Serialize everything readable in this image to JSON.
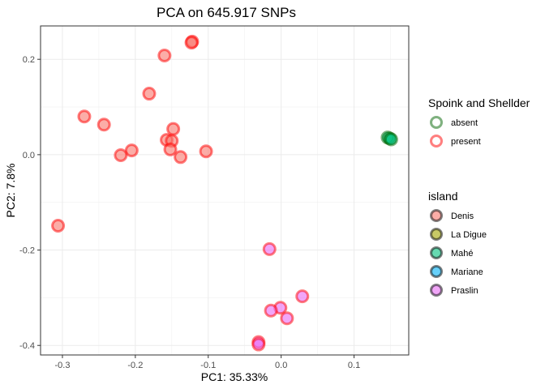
{
  "chart_data": {
    "type": "scatter",
    "title": "PCA on 645.917 SNPs",
    "xlabel": "PC1: 35.33%",
    "ylabel": "PC2: 7.8%",
    "xlim": [
      -0.33,
      0.175
    ],
    "ylim": [
      -0.42,
      0.27
    ],
    "x_ticks": [
      -0.3,
      -0.2,
      -0.1,
      0.0,
      0.1
    ],
    "x_tick_labels": [
      "-0.3",
      "-0.2",
      "-0.1",
      "0.0",
      "0.1"
    ],
    "y_ticks": [
      -0.4,
      -0.2,
      0.0,
      0.2
    ],
    "y_tick_labels": [
      "-0.4",
      "-0.2",
      "0.0",
      "0.2"
    ],
    "grid": true,
    "legend_placement": "right",
    "legends": [
      {
        "title": "Spoink and Shellder",
        "aesthetic": "outline color",
        "entries": [
          {
            "label": "absent",
            "color": "#006400"
          },
          {
            "label": "present",
            "color": "#ff0000"
          }
        ]
      },
      {
        "title": "island",
        "aesthetic": "fill color",
        "entries": [
          {
            "label": "Denis",
            "color": "#f8766d"
          },
          {
            "label": "La Digue",
            "color": "#a3a500"
          },
          {
            "label": "Mahé",
            "color": "#00bf7d"
          },
          {
            "label": "Mariane",
            "color": "#00b0f6"
          },
          {
            "label": "Praslin",
            "color": "#e76bf3"
          }
        ]
      }
    ],
    "points": [
      {
        "x": -0.122,
        "y": 0.237,
        "spoink": "present",
        "island": "Denis"
      },
      {
        "x": -0.123,
        "y": 0.235,
        "spoink": "present",
        "island": "Denis"
      },
      {
        "x": -0.16,
        "y": 0.208,
        "spoink": "present",
        "island": "Denis"
      },
      {
        "x": -0.181,
        "y": 0.128,
        "spoink": "present",
        "island": "Denis"
      },
      {
        "x": -0.27,
        "y": 0.08,
        "spoink": "present",
        "island": "Denis"
      },
      {
        "x": -0.243,
        "y": 0.063,
        "spoink": "present",
        "island": "Denis"
      },
      {
        "x": -0.148,
        "y": 0.054,
        "spoink": "present",
        "island": "Denis"
      },
      {
        "x": -0.157,
        "y": 0.031,
        "spoink": "present",
        "island": "Denis"
      },
      {
        "x": -0.15,
        "y": 0.029,
        "spoink": "present",
        "island": "Denis"
      },
      {
        "x": -0.152,
        "y": 0.011,
        "spoink": "present",
        "island": "Denis"
      },
      {
        "x": -0.205,
        "y": 0.009,
        "spoink": "present",
        "island": "Denis"
      },
      {
        "x": -0.103,
        "y": 0.007,
        "spoink": "present",
        "island": "Denis"
      },
      {
        "x": -0.22,
        "y": -0.001,
        "spoink": "present",
        "island": "Denis"
      },
      {
        "x": -0.138,
        "y": -0.005,
        "spoink": "present",
        "island": "Denis"
      },
      {
        "x": -0.306,
        "y": -0.149,
        "spoink": "present",
        "island": "Denis"
      },
      {
        "x": -0.016,
        "y": -0.198,
        "spoink": "present",
        "island": "Praslin"
      },
      {
        "x": 0.029,
        "y": -0.297,
        "spoink": "present",
        "island": "Praslin"
      },
      {
        "x": -0.001,
        "y": -0.321,
        "spoink": "present",
        "island": "Praslin"
      },
      {
        "x": -0.014,
        "y": -0.327,
        "spoink": "present",
        "island": "Praslin"
      },
      {
        "x": 0.008,
        "y": -0.343,
        "spoink": "present",
        "island": "Praslin"
      },
      {
        "x": -0.031,
        "y": -0.393,
        "spoink": "present",
        "island": "Praslin"
      },
      {
        "x": -0.031,
        "y": -0.398,
        "spoink": "present",
        "island": "Praslin"
      },
      {
        "x": 0.146,
        "y": 0.036,
        "spoink": "absent",
        "island": "Mahé"
      },
      {
        "x": 0.149,
        "y": 0.034,
        "spoink": "absent",
        "island": "Mahé"
      },
      {
        "x": 0.151,
        "y": 0.032,
        "spoink": "absent",
        "island": "Mahé"
      }
    ]
  }
}
